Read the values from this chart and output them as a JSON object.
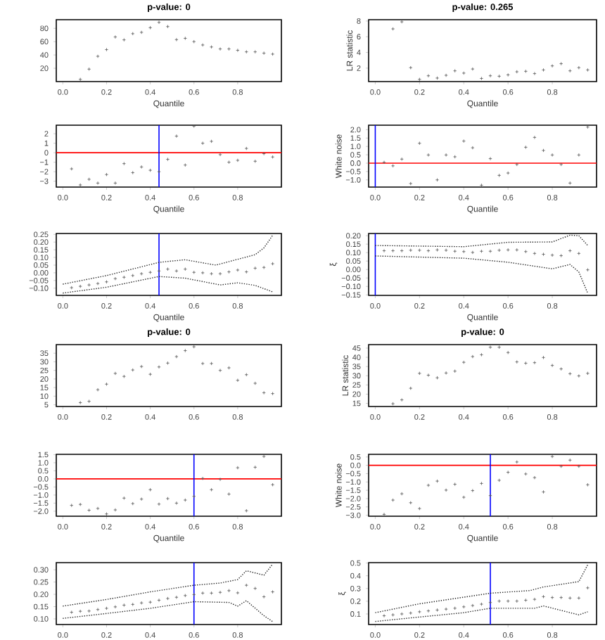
{
  "chart_data": [
    {
      "type": "scatter",
      "title": "p-value: 0",
      "xlabel": "Quantile",
      "marker": "cross",
      "xlim": [
        -0.03,
        1.0
      ],
      "ylim": [
        0,
        93
      ],
      "xticks": [
        {
          "value": 0,
          "label": "0.0"
        },
        {
          "value": 0.2,
          "label": "0.2"
        },
        {
          "value": 0.4,
          "label": "0.4"
        },
        {
          "value": 0.6,
          "label": "0.6"
        },
        {
          "value": 0.8,
          "label": "0.8"
        }
      ],
      "yticks": [
        20,
        40,
        60,
        80
      ],
      "series": [
        {
          "type": "scatter",
          "color": "#555555",
          "x": [
            0.08,
            0.12,
            0.16,
            0.2,
            0.24,
            0.28,
            0.32,
            0.36,
            0.4,
            0.44,
            0.48,
            0.52,
            0.56,
            0.6,
            0.64,
            0.68,
            0.72,
            0.76,
            0.8,
            0.84,
            0.88,
            0.92,
            0.96
          ],
          "values": [
            3.3,
            18.7,
            38,
            48,
            67,
            62.7,
            72,
            74,
            81,
            89,
            82.7,
            63,
            65,
            60,
            55,
            52,
            49,
            49,
            47,
            44.7,
            44.7,
            42.7,
            41.3
          ]
        }
      ]
    },
    {
      "type": "scatter",
      "title": "p-value: 0.265",
      "xlabel": "Quantile",
      "ylabel": "LR statistic",
      "marker": "cross",
      "xlim": [
        -0.03,
        1.0
      ],
      "ylim": [
        0.29,
        8.17
      ],
      "xticks": [
        {
          "value": 0,
          "label": "0.0"
        },
        {
          "value": 0.2,
          "label": "0.2"
        },
        {
          "value": 0.4,
          "label": "0.4"
        },
        {
          "value": 0.6,
          "label": "0.6"
        },
        {
          "value": 0.8,
          "label": "0.8"
        }
      ],
      "yticks": [
        2,
        4,
        6,
        8
      ],
      "series": [
        {
          "type": "scatter",
          "color": "#555555",
          "x": [
            0.08,
            0.12,
            0.16,
            0.2,
            0.24,
            0.28,
            0.32,
            0.36,
            0.4,
            0.44,
            0.48,
            0.52,
            0.56,
            0.6,
            0.64,
            0.68,
            0.72,
            0.76,
            0.8,
            0.84,
            0.88,
            0.92,
            0.96
          ],
          "values": [
            7.0,
            7.9,
            2.06,
            0.57,
            1.03,
            0.74,
            1.09,
            1.66,
            1.37,
            1.89,
            0.69,
            1.03,
            0.97,
            1.14,
            1.54,
            1.6,
            1.31,
            1.77,
            2.29,
            2.57,
            1.66,
            2.06,
            1.77
          ]
        }
      ]
    },
    {
      "type": "scatter",
      "xlabel": "Quantile",
      "marker": "cross",
      "xlim": [
        -0.03,
        1.0
      ],
      "ylim": [
        -3.62,
        2.9
      ],
      "xticks": [
        {
          "value": 0,
          "label": "0.0"
        },
        {
          "value": 0.2,
          "label": "0.2"
        },
        {
          "value": 0.4,
          "label": "0.4"
        },
        {
          "value": 0.6,
          "label": "0.6"
        },
        {
          "value": 0.8,
          "label": "0.8"
        }
      ],
      "yticks": [
        {
          "value": -3,
          "label": "−3"
        },
        {
          "value": -2,
          "label": "−2"
        },
        {
          "value": -1,
          "label": "−1"
        },
        0,
        1,
        2
      ],
      "ref_lines": [
        {
          "axis": "y",
          "value": 0,
          "color": "#ff0000"
        },
        {
          "axis": "x",
          "value": 0.44,
          "color": "#0000ff"
        }
      ],
      "series": [
        {
          "type": "scatter",
          "color": "#555555",
          "x": [
            0.04,
            0.08,
            0.12,
            0.16,
            0.2,
            0.24,
            0.28,
            0.32,
            0.36,
            0.4,
            0.44,
            0.48,
            0.52,
            0.56,
            0.6,
            0.64,
            0.68,
            0.72,
            0.76,
            0.8,
            0.84,
            0.88,
            0.92,
            0.96
          ],
          "values": [
            -1.7,
            -3.4,
            -2.8,
            -3.2,
            -2.3,
            -3.2,
            -1.15,
            -2.1,
            -1.5,
            -1.85,
            -2.0,
            -0.7,
            1.75,
            -1.3,
            2.8,
            1.0,
            1.2,
            -0.2,
            -1.0,
            -0.8,
            0.45,
            -0.9,
            -0.1,
            -0.45
          ]
        }
      ]
    },
    {
      "type": "scatter",
      "xlabel": "Quantile",
      "ylabel": "White noise",
      "marker": "cross",
      "xlim": [
        -0.03,
        1.0
      ],
      "ylim": [
        -1.43,
        2.27
      ],
      "xticks": [
        {
          "value": 0,
          "label": "0.0"
        },
        {
          "value": 0.2,
          "label": "0.2"
        },
        {
          "value": 0.4,
          "label": "0.4"
        },
        {
          "value": 0.6,
          "label": "0.6"
        },
        {
          "value": 0.8,
          "label": "0.8"
        }
      ],
      "yticks": [
        {
          "value": -1,
          "label": "−1.0"
        },
        {
          "value": -0.5,
          "label": "−0.5"
        },
        {
          "value": 0,
          "label": "0.0"
        },
        {
          "value": 0.5,
          "label": "0.5"
        },
        {
          "value": 1,
          "label": "1.0"
        },
        {
          "value": 1.5,
          "label": "1.5"
        },
        {
          "value": 2,
          "label": "2.0"
        }
      ],
      "ref_lines": [
        {
          "axis": "y",
          "value": 0,
          "color": "#ff0000"
        },
        {
          "axis": "x",
          "value": 0,
          "color": "#0000ff"
        }
      ],
      "series": [
        {
          "type": "scatter",
          "color": "#555555",
          "x": [
            0.04,
            0.08,
            0.12,
            0.16,
            0.2,
            0.24,
            0.28,
            0.32,
            0.36,
            0.4,
            0.44,
            0.48,
            0.52,
            0.56,
            0.6,
            0.64,
            0.68,
            0.72,
            0.76,
            0.8,
            0.84,
            0.88,
            0.92,
            0.96
          ],
          "values": [
            0.05,
            -0.16,
            0.24,
            -1.22,
            1.19,
            0.49,
            -1.0,
            0.49,
            0.38,
            1.32,
            0.92,
            -1.32,
            0.27,
            -0.73,
            -0.59,
            -0.08,
            0.95,
            1.54,
            0.76,
            0.49,
            -0.08,
            -1.19,
            0.49,
            2.16
          ]
        }
      ]
    },
    {
      "type": "scatter",
      "xlabel": "Quantile",
      "marker": "cross",
      "xlim": [
        -0.03,
        1.0
      ],
      "ylim": [
        -0.147,
        0.256
      ],
      "xticks": [
        {
          "value": 0,
          "label": "0.0"
        },
        {
          "value": 0.2,
          "label": "0.2"
        },
        {
          "value": 0.4,
          "label": "0.4"
        },
        {
          "value": 0.6,
          "label": "0.6"
        },
        {
          "value": 0.8,
          "label": "0.8"
        }
      ],
      "yticks": [
        {
          "value": -0.1,
          "label": "−0.10"
        },
        {
          "value": -0.05,
          "label": "−0.05"
        },
        {
          "value": 0,
          "label": "0.00"
        },
        {
          "value": 0.05,
          "label": "0.05"
        },
        {
          "value": 0.1,
          "label": "0.10"
        },
        {
          "value": 0.15,
          "label": "0.15"
        },
        {
          "value": 0.2,
          "label": "0.20"
        },
        {
          "value": 0.25,
          "label": "0.25"
        }
      ],
      "ref_lines": [
        {
          "axis": "x",
          "value": 0.44,
          "color": "#0000ff"
        }
      ],
      "series": [
        {
          "type": "scatter",
          "color": "#555555",
          "x": [
            0.04,
            0.08,
            0.12,
            0.16,
            0.2,
            0.24,
            0.28,
            0.32,
            0.36,
            0.4,
            0.44,
            0.48,
            0.52,
            0.56,
            0.6,
            0.64,
            0.68,
            0.72,
            0.76,
            0.8,
            0.84,
            0.88,
            0.92,
            0.96
          ],
          "values": [
            -0.097,
            -0.088,
            -0.079,
            -0.07,
            -0.059,
            -0.038,
            -0.029,
            -0.018,
            -0.006,
            0.003,
            0.012,
            0.024,
            0.012,
            0.024,
            0.003,
            0,
            -0.006,
            -0.006,
            0.006,
            0.018,
            0.006,
            0.03,
            0.035,
            0.059
          ]
        },
        {
          "type": "line",
          "line_style": "dotted",
          "color": "#222222",
          "x": [
            0.0,
            0.2,
            0.44,
            0.48,
            0.56,
            0.7,
            0.8,
            0.88,
            0.92,
            0.96
          ],
          "marker": "none",
          "values": [
            -0.074,
            -0.018,
            0.068,
            0.074,
            0.085,
            0.05,
            0.088,
            0.118,
            0.162,
            0.244
          ]
        },
        {
          "type": "line",
          "line_style": "dotted",
          "color": "#222222",
          "x": [
            0.0,
            0.2,
            0.44,
            0.56,
            0.72,
            0.8,
            0.88,
            0.96
          ],
          "marker": "none",
          "values": [
            -0.132,
            -0.094,
            -0.024,
            -0.035,
            -0.079,
            -0.065,
            -0.082,
            -0.124
          ]
        }
      ]
    },
    {
      "type": "scatter",
      "xlabel": "Quantile",
      "ylabel": "ξ",
      "marker": "cross",
      "xlim": [
        -0.03,
        1.0
      ],
      "ylim": [
        -0.153,
        0.213
      ],
      "xticks": [
        {
          "value": 0,
          "label": "0.0"
        },
        {
          "value": 0.2,
          "label": "0.2"
        },
        {
          "value": 0.4,
          "label": "0.4"
        },
        {
          "value": 0.6,
          "label": "0.6"
        },
        {
          "value": 0.8,
          "label": "0.8"
        }
      ],
      "yticks": [
        {
          "value": -0.15,
          "label": "−0.15"
        },
        {
          "value": -0.1,
          "label": "−0.10"
        },
        {
          "value": -0.05,
          "label": "−0.05"
        },
        {
          "value": 0,
          "label": "0.00"
        },
        {
          "value": 0.05,
          "label": "0.05"
        },
        {
          "value": 0.1,
          "label": "0.10"
        },
        {
          "value": 0.15,
          "label": "0.15"
        },
        {
          "value": 0.2,
          "label": "0.20"
        }
      ],
      "ref_lines": [
        {
          "axis": "x",
          "value": 0,
          "color": "#0000ff"
        }
      ],
      "series": [
        {
          "type": "scatter",
          "color": "#555555",
          "x": [
            0.04,
            0.08,
            0.12,
            0.16,
            0.2,
            0.24,
            0.28,
            0.32,
            0.36,
            0.4,
            0.44,
            0.48,
            0.52,
            0.56,
            0.6,
            0.64,
            0.68,
            0.72,
            0.76,
            0.8,
            0.84,
            0.88,
            0.92,
            0.96
          ],
          "values": [
            0.111,
            0.111,
            0.111,
            0.114,
            0.114,
            0.111,
            0.116,
            0.114,
            0.108,
            0.106,
            0.101,
            0.108,
            0.108,
            0.114,
            0.116,
            0.116,
            0.106,
            0.095,
            0.09,
            0.085,
            0.082,
            0.111,
            0.095,
            -0.002
          ]
        },
        {
          "type": "line",
          "line_style": "dotted",
          "color": "#222222",
          "x": [
            0.0,
            0.4,
            0.6,
            0.8,
            0.88,
            0.92,
            0.96
          ],
          "marker": "none",
          "values": [
            0.142,
            0.135,
            0.161,
            0.163,
            0.203,
            0.2,
            0.142
          ]
        },
        {
          "type": "line",
          "line_style": "dotted",
          "color": "#222222",
          "x": [
            0.0,
            0.4,
            0.6,
            0.8,
            0.88,
            0.92,
            0.96
          ],
          "marker": "none",
          "values": [
            0.08,
            0.067,
            0.043,
            0.004,
            0.03,
            -0.015,
            -0.14
          ]
        }
      ]
    },
    {
      "type": "scatter",
      "title": "p-value: 0",
      "marker": "cross",
      "xlim": [
        -0.03,
        1.0
      ],
      "ylim": [
        4,
        40
      ],
      "xticks": [
        {
          "value": 0,
          "label": "0.0"
        },
        {
          "value": 0.2,
          "label": "0.2"
        },
        {
          "value": 0.4,
          "label": "0.4"
        },
        {
          "value": 0.6,
          "label": "0.6"
        },
        {
          "value": 0.8,
          "label": "0.8"
        }
      ],
      "yticks": [
        5,
        10,
        15,
        20,
        25,
        30,
        35
      ],
      "series": [
        {
          "type": "scatter",
          "color": "#555555",
          "x": [
            0.08,
            0.12,
            0.16,
            0.2,
            0.24,
            0.28,
            0.32,
            0.36,
            0.4,
            0.44,
            0.48,
            0.52,
            0.56,
            0.6,
            0.64,
            0.68,
            0.72,
            0.76,
            0.8,
            0.84,
            0.88,
            0.92,
            0.96
          ],
          "values": [
            6.25,
            7,
            13.75,
            17,
            23.25,
            21.5,
            25.25,
            27.25,
            22.75,
            27,
            29.25,
            33,
            36.5,
            38.75,
            29,
            29,
            25,
            26.5,
            19.25,
            22.5,
            17.5,
            12,
            11.5
          ]
        }
      ]
    },
    {
      "type": "scatter",
      "title": "p-value: 0",
      "ylabel": "LR statistic",
      "marker": "cross",
      "xlim": [
        -0.03,
        1.0
      ],
      "ylim": [
        13.3,
        46.9
      ],
      "xticks": [
        {
          "value": 0,
          "label": "0.0"
        },
        {
          "value": 0.2,
          "label": "0.2"
        },
        {
          "value": 0.4,
          "label": "0.4"
        },
        {
          "value": 0.6,
          "label": "0.6"
        },
        {
          "value": 0.8,
          "label": "0.8"
        }
      ],
      "yticks": [
        15,
        20,
        25,
        30,
        35,
        40,
        45
      ],
      "series": [
        {
          "type": "scatter",
          "color": "#555555",
          "x": [
            0.08,
            0.12,
            0.16,
            0.2,
            0.24,
            0.28,
            0.32,
            0.36,
            0.4,
            0.44,
            0.48,
            0.52,
            0.56,
            0.6,
            0.64,
            0.68,
            0.72,
            0.76,
            0.8,
            0.84,
            0.88,
            0.92,
            0.96
          ],
          "values": [
            14.8,
            16.9,
            23.2,
            31.3,
            30.3,
            28.9,
            31.5,
            32.5,
            37.3,
            40.4,
            41.4,
            45.5,
            45.5,
            42.6,
            37.5,
            36.8,
            37.1,
            39.9,
            35.6,
            33.7,
            31.1,
            29.9,
            31.3
          ]
        }
      ]
    },
    {
      "type": "scatter",
      "xlabel": "Quantile",
      "marker": "cross",
      "xlim": [
        -0.03,
        1.0
      ],
      "ylim": [
        -2.31,
        1.52
      ],
      "xticks": [
        {
          "value": 0,
          "label": "0.0"
        },
        {
          "value": 0.2,
          "label": "0.2"
        },
        {
          "value": 0.4,
          "label": "0.4"
        },
        {
          "value": 0.6,
          "label": "0.6"
        },
        {
          "value": 0.8,
          "label": "0.8"
        }
      ],
      "yticks": [
        {
          "value": -2,
          "label": "−2.0"
        },
        {
          "value": -1.5,
          "label": "−1.5"
        },
        {
          "value": -1,
          "label": "−1.0"
        },
        {
          "value": -0.5,
          "label": "−0.5"
        },
        {
          "value": 0,
          "label": "0.0"
        },
        {
          "value": 0.5,
          "label": "0.5"
        },
        {
          "value": 1,
          "label": "1.0"
        },
        {
          "value": 1.5,
          "label": "1.5"
        }
      ],
      "ref_lines": [
        {
          "axis": "y",
          "value": 0,
          "color": "#ff0000"
        },
        {
          "axis": "x",
          "value": 0.6,
          "color": "#0000ff"
        }
      ],
      "series": [
        {
          "type": "scatter",
          "color": "#555555",
          "x": [
            0.04,
            0.08,
            0.12,
            0.16,
            0.2,
            0.24,
            0.28,
            0.32,
            0.36,
            0.4,
            0.44,
            0.48,
            0.52,
            0.56,
            0.6,
            0.64,
            0.68,
            0.72,
            0.76,
            0.8,
            0.84,
            0.88,
            0.92,
            0.96
          ],
          "values": [
            -1.64,
            -1.58,
            -1.94,
            -1.83,
            -2.17,
            -1.92,
            -1.19,
            -1.53,
            -1.25,
            -0.67,
            -1.56,
            -1.22,
            -1.5,
            -1.31,
            -1.08,
            0.03,
            -0.67,
            -0.03,
            -0.94,
            0.69,
            -1.97,
            0.72,
            1.39,
            -0.36
          ]
        }
      ]
    },
    {
      "type": "scatter",
      "xlabel": "Quantile",
      "ylabel": "White noise",
      "marker": "cross",
      "xlim": [
        -0.03,
        1.0
      ],
      "ylim": [
        -3.06,
        0.66
      ],
      "xticks": [
        {
          "value": 0,
          "label": "0.0"
        },
        {
          "value": 0.2,
          "label": "0.2"
        },
        {
          "value": 0.4,
          "label": "0.4"
        },
        {
          "value": 0.6,
          "label": "0.6"
        },
        {
          "value": 0.8,
          "label": "0.8"
        }
      ],
      "yticks": [
        {
          "value": -3,
          "label": "−3.0"
        },
        {
          "value": -2.5,
          "label": "−2.5"
        },
        {
          "value": -2,
          "label": "−2.0"
        },
        {
          "value": -1.5,
          "label": "−1.5"
        },
        {
          "value": -1,
          "label": "−1.0"
        },
        {
          "value": -0.5,
          "label": "−0.5"
        },
        {
          "value": 0,
          "label": "0.0"
        },
        {
          "value": 0.5,
          "label": "0.5"
        }
      ],
      "ref_lines": [
        {
          "axis": "y",
          "value": 0,
          "color": "#ff0000"
        },
        {
          "axis": "x",
          "value": 0.52,
          "color": "#0000ff"
        }
      ],
      "series": [
        {
          "type": "scatter",
          "color": "#555555",
          "x": [
            0.04,
            0.08,
            0.12,
            0.16,
            0.2,
            0.24,
            0.28,
            0.32,
            0.36,
            0.4,
            0.44,
            0.48,
            0.52,
            0.56,
            0.6,
            0.64,
            0.68,
            0.72,
            0.76,
            0.8,
            0.84,
            0.88,
            0.92,
            0.96
          ],
          "values": [
            -2.95,
            -2.09,
            -1.71,
            -2.25,
            -2.6,
            -1.2,
            -0.95,
            -1.49,
            -1.14,
            -1.92,
            -1.52,
            -1.09,
            -1.82,
            -0.9,
            -0.42,
            0.2,
            -0.52,
            -0.74,
            -1.6,
            0.53,
            -0.06,
            0.31,
            -0.06,
            -1.17
          ]
        }
      ]
    },
    {
      "type": "scatter",
      "marker": "cross",
      "xlim": [
        -0.03,
        1.0
      ],
      "ylim": [
        0.077,
        0.329
      ],
      "xticks": [
        {
          "value": 0,
          "label": "0.0"
        },
        {
          "value": 0.2,
          "label": "0.2"
        },
        {
          "value": 0.4,
          "label": "0.4"
        },
        {
          "value": 0.6,
          "label": "0.6"
        },
        {
          "value": 0.8,
          "label": "0.8"
        }
      ],
      "yticks": [
        {
          "value": 0.1,
          "label": "0.10"
        },
        {
          "value": 0.15,
          "label": "0.15"
        },
        {
          "value": 0.2,
          "label": "0.20"
        },
        {
          "value": 0.25,
          "label": "0.25"
        },
        {
          "value": 0.3,
          "label": "0.30"
        }
      ],
      "ref_lines": [
        {
          "axis": "x",
          "value": 0.6,
          "color": "#0000ff"
        }
      ],
      "series": [
        {
          "type": "scatter",
          "color": "#555555",
          "x": [
            0.04,
            0.08,
            0.12,
            0.16,
            0.2,
            0.24,
            0.28,
            0.32,
            0.36,
            0.4,
            0.44,
            0.48,
            0.52,
            0.56,
            0.6,
            0.64,
            0.68,
            0.72,
            0.76,
            0.8,
            0.84,
            0.88,
            0.92,
            0.96
          ],
          "values": [
            0.127,
            0.131,
            0.132,
            0.138,
            0.143,
            0.149,
            0.156,
            0.159,
            0.165,
            0.168,
            0.176,
            0.183,
            0.188,
            0.195,
            0.199,
            0.205,
            0.205,
            0.208,
            0.215,
            0.206,
            0.237,
            0.224,
            0.19,
            0.21
          ]
        },
        {
          "type": "line",
          "line_style": "dotted",
          "color": "#222222",
          "x": [
            0.0,
            0.2,
            0.4,
            0.6,
            0.72,
            0.8,
            0.84,
            0.92,
            0.96
          ],
          "marker": "none",
          "values": [
            0.152,
            0.179,
            0.21,
            0.237,
            0.246,
            0.26,
            0.296,
            0.278,
            0.323
          ]
        },
        {
          "type": "line",
          "line_style": "dotted",
          "color": "#222222",
          "x": [
            0.0,
            0.2,
            0.4,
            0.6,
            0.76,
            0.8,
            0.84,
            0.92,
            0.96
          ],
          "marker": "none",
          "values": [
            0.102,
            0.122,
            0.143,
            0.17,
            0.167,
            0.152,
            0.174,
            0.113,
            0.089
          ]
        }
      ]
    },
    {
      "type": "scatter",
      "ylabel": "ξ",
      "marker": "cross",
      "xlim": [
        -0.03,
        1.0
      ],
      "ylim": [
        0.017,
        0.503
      ],
      "xticks": [
        {
          "value": 0,
          "label": "0.0"
        },
        {
          "value": 0.2,
          "label": "0.2"
        },
        {
          "value": 0.4,
          "label": "0.4"
        },
        {
          "value": 0.6,
          "label": "0.6"
        },
        {
          "value": 0.8,
          "label": "0.8"
        }
      ],
      "yticks": [
        {
          "value": 0.1,
          "label": "0.1"
        },
        {
          "value": 0.2,
          "label": "0.2"
        },
        {
          "value": 0.3,
          "label": "0.3"
        },
        {
          "value": 0.4,
          "label": "0.4"
        },
        {
          "value": 0.5,
          "label": "0.5"
        }
      ],
      "ref_lines": [
        {
          "axis": "x",
          "value": 0.52,
          "color": "#0000ff"
        }
      ],
      "series": [
        {
          "type": "scatter",
          "color": "#555555",
          "x": [
            0.04,
            0.08,
            0.12,
            0.16,
            0.2,
            0.24,
            0.28,
            0.32,
            0.36,
            0.4,
            0.44,
            0.48,
            0.52,
            0.56,
            0.6,
            0.64,
            0.68,
            0.72,
            0.76,
            0.8,
            0.84,
            0.88,
            0.92,
            0.96
          ],
          "values": [
            0.086,
            0.093,
            0.1,
            0.107,
            0.117,
            0.124,
            0.131,
            0.138,
            0.145,
            0.156,
            0.166,
            0.177,
            0.19,
            0.201,
            0.201,
            0.201,
            0.208,
            0.215,
            0.236,
            0.229,
            0.229,
            0.225,
            0.225,
            0.305
          ]
        },
        {
          "type": "line",
          "line_style": "dotted",
          "color": "#222222",
          "x": [
            0.0,
            0.2,
            0.4,
            0.52,
            0.7,
            0.76,
            0.92,
            0.96
          ],
          "marker": "none",
          "values": [
            0.11,
            0.18,
            0.232,
            0.263,
            0.284,
            0.312,
            0.354,
            0.486
          ]
        },
        {
          "type": "line",
          "line_style": "dotted",
          "color": "#222222",
          "x": [
            0.0,
            0.2,
            0.4,
            0.52,
            0.72,
            0.76,
            0.92,
            0.96
          ],
          "marker": "none",
          "values": [
            0.041,
            0.076,
            0.11,
            0.145,
            0.145,
            0.163,
            0.093,
            0.117
          ]
        }
      ]
    }
  ]
}
